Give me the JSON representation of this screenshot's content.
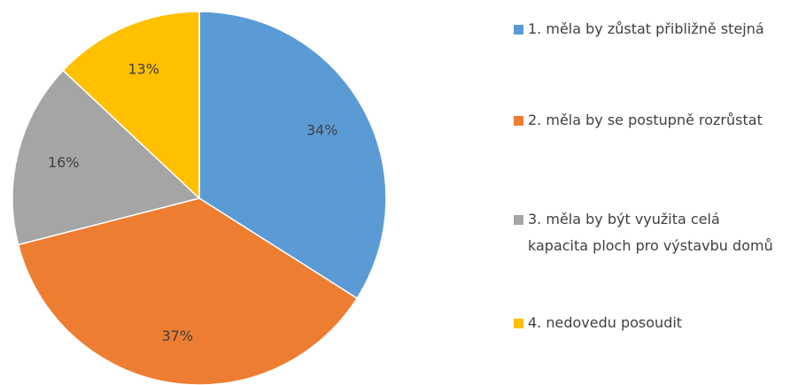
{
  "chart_data": {
    "type": "pie",
    "categories": [
      "1. měla by zůstat  přibližně stejná",
      "2. měla by se postupně rozrůstat",
      "3. měla by být využita  celá kapacita ploch pro výstavbu domů",
      "4. nedovedu posoudit"
    ],
    "values": [
      34,
      37,
      16,
      13
    ],
    "value_labels": [
      "34%",
      "37%",
      "16%",
      "13%"
    ],
    "colors": [
      "#5b9bd5",
      "#ed7d31",
      "#a5a5a5",
      "#ffc000"
    ],
    "legend": "right"
  }
}
